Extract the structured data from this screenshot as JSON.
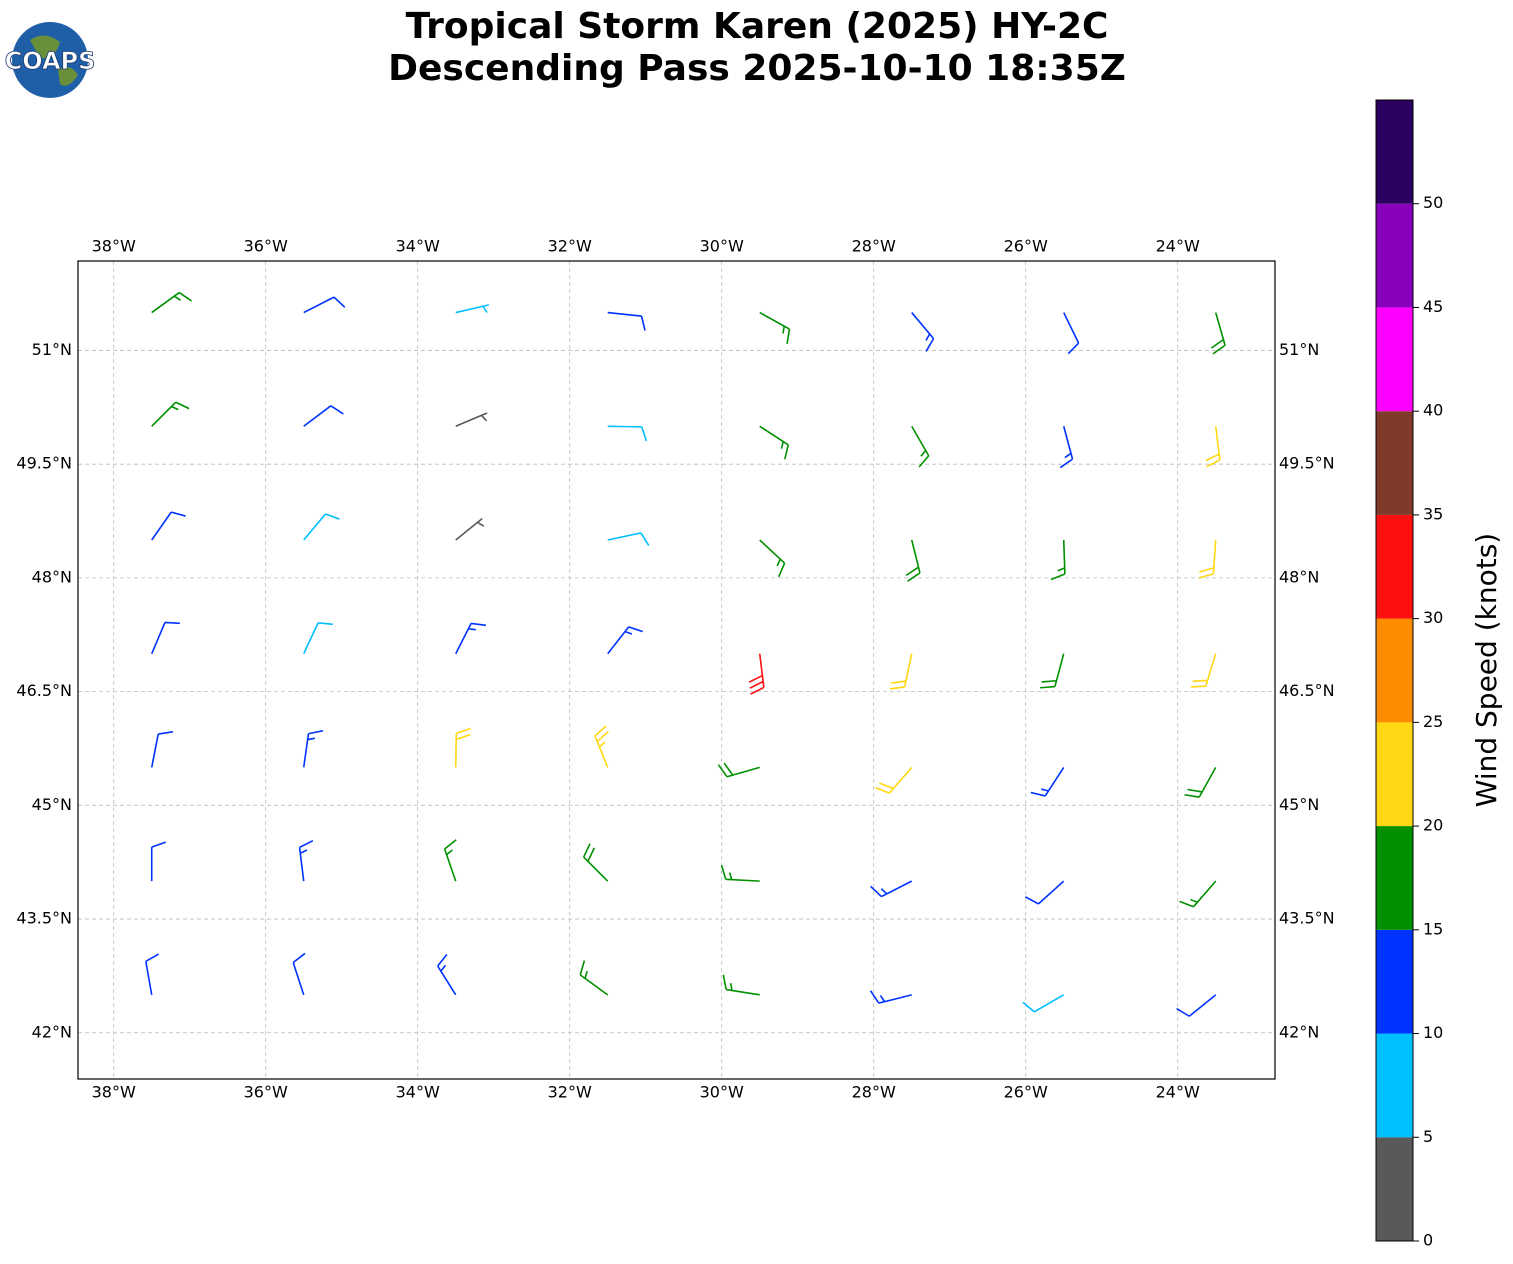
{
  "chart_data": {
    "type": "barbs",
    "title": "Tropical Storm Karen (2025) HY-2C",
    "subtitle": "Descending Pass 2025-10-10 18:35Z",
    "logo_text": "COAPS",
    "xlim": [
      -38.47,
      -22.72
    ],
    "ylim": [
      41.39,
      52.18
    ],
    "xticks": [
      {
        "value": -38,
        "label": "38°W"
      },
      {
        "value": -36,
        "label": "36°W"
      },
      {
        "value": -34,
        "label": "34°W"
      },
      {
        "value": -32,
        "label": "32°W"
      },
      {
        "value": -30,
        "label": "30°W"
      },
      {
        "value": -28,
        "label": "28°W"
      },
      {
        "value": -26,
        "label": "26°W"
      },
      {
        "value": -24,
        "label": "24°W"
      }
    ],
    "yticks": [
      {
        "value": 42,
        "label": "42°N"
      },
      {
        "value": 43.5,
        "label": "43.5°N"
      },
      {
        "value": 45,
        "label": "45°N"
      },
      {
        "value": 46.5,
        "label": "46.5°N"
      },
      {
        "value": 48,
        "label": "48°N"
      },
      {
        "value": 49.5,
        "label": "49.5°N"
      },
      {
        "value": 51,
        "label": "51°N"
      }
    ],
    "grid": true,
    "barbs": {
      "lon": [
        -37.5,
        -35.5,
        -33.5,
        -31.5,
        -29.5,
        -27.5,
        -25.5,
        -23.5,
        -37.5,
        -35.5,
        -33.5,
        -31.5,
        -29.5,
        -27.5,
        -25.5,
        -23.5,
        -37.5,
        -35.5,
        -33.5,
        -31.5,
        -29.5,
        -27.5,
        -25.5,
        -23.5,
        -37.5,
        -35.5,
        -33.5,
        -31.5,
        -29.5,
        -27.5,
        -25.5,
        -23.5,
        -37.5,
        -35.5,
        -33.5,
        -31.5,
        -29.5,
        -27.5,
        -25.5,
        -23.5,
        -37.5,
        -35.5,
        -33.5,
        -31.5,
        -29.5,
        -27.5,
        -25.5,
        -23.5,
        -37.5,
        -35.5,
        -33.5,
        -31.5,
        -29.5,
        -27.5,
        -25.5,
        -23.5
      ],
      "lat": [
        51.5,
        51.5,
        51.5,
        51.5,
        51.5,
        51.5,
        51.5,
        51.5,
        50,
        50,
        50,
        50,
        50,
        50,
        50,
        50,
        48.5,
        48.5,
        48.5,
        48.5,
        48.5,
        48.5,
        48.5,
        48.5,
        47,
        47,
        47,
        47,
        47,
        47,
        47,
        47,
        45.5,
        45.5,
        45.5,
        45.5,
        45.5,
        45.5,
        45.5,
        45.5,
        44,
        44,
        44,
        44,
        44,
        44,
        44,
        44,
        42.5,
        42.5,
        42.5,
        42.5,
        42.5,
        42.5,
        42.5,
        42.5
      ],
      "speed": [
        16,
        12,
        7,
        12,
        16,
        13,
        12,
        18,
        16,
        12,
        3,
        8,
        17,
        16,
        14,
        21,
        12,
        8,
        4,
        8,
        17,
        18,
        16,
        22,
        12,
        8,
        13,
        14,
        31,
        22,
        18,
        22,
        11,
        13,
        21,
        23,
        18,
        21,
        14,
        18,
        12,
        13,
        17,
        18,
        16,
        14,
        12,
        16,
        12,
        12,
        14,
        16,
        17,
        13,
        9,
        12
      ],
      "direction": [
        54,
        63,
        77,
        96,
        119,
        140,
        154,
        164,
        45,
        53,
        67,
        91,
        123,
        150,
        165,
        173,
        35,
        40,
        51,
        78,
        133,
        166,
        178,
        184,
        23,
        25,
        27,
        38,
        173,
        192,
        195,
        197,
        11,
        8,
        1,
        338,
        254,
        221,
        213,
        209,
        0,
        353,
        341,
        315,
        273,
        243,
        228,
        221,
        350,
        342,
        328,
        306,
        279,
        256,
        240,
        231
      ]
    },
    "colorbar": {
      "label": "Wind Speed (knots)",
      "lim": [
        0,
        55
      ],
      "bounds": [
        0,
        5,
        10,
        15,
        20,
        25,
        30,
        35,
        40,
        45,
        50,
        55
      ],
      "colors": [
        "#595959",
        "#00bfff",
        "#0033ff",
        "#009000",
        "#ffd712",
        "#ff8c00",
        "#ff1010",
        "#7f3a2a",
        "#ff00ff",
        "#8800bb",
        "#2a0060"
      ],
      "ticks": [
        0,
        5,
        10,
        15,
        20,
        25,
        30,
        35,
        40,
        45,
        50
      ]
    }
  }
}
